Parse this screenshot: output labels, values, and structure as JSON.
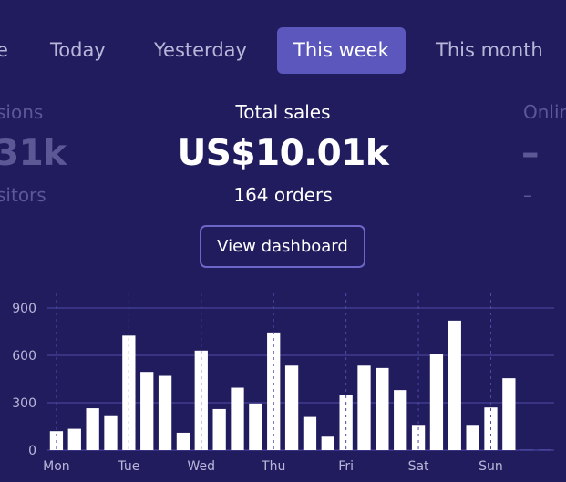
{
  "tabs": [
    "e",
    "Today",
    "Yesterday",
    "This week",
    "This month"
  ],
  "active_tab": "This week",
  "stats": {
    "left": {
      "label": "sions",
      "value": "31k",
      "sub": "sitors"
    },
    "center": {
      "label": "Total sales",
      "value": "US$10.01k",
      "sub": "164 orders"
    },
    "right": {
      "label": "Onlin",
      "value": "–",
      "sub": "–"
    }
  },
  "actions": {
    "view_dashboard": "View dashboard"
  },
  "colors": {
    "background": "#211c5e",
    "accent": "#5b57bd",
    "bars": "#ffffff",
    "gridline": "#4e4aa6"
  },
  "chart_data": {
    "type": "bar",
    "yticks": [
      0,
      300,
      600,
      900
    ],
    "ylim": [
      0,
      900
    ],
    "day_labels": [
      "Mon",
      "Tue",
      "Wed",
      "Thu",
      "Fri",
      "Sat",
      "Sun"
    ],
    "values": [
      120,
      135,
      265,
      215,
      725,
      495,
      470,
      110,
      630,
      260,
      395,
      295,
      745,
      535,
      210,
      85,
      350,
      535,
      520,
      380,
      160,
      610,
      820,
      160,
      270,
      455,
      5,
      5
    ]
  }
}
